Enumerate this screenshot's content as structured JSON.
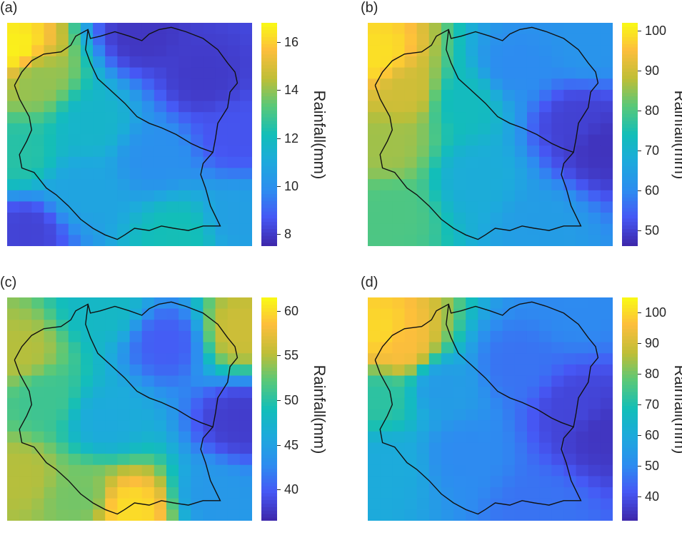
{
  "chart_data": [
    {
      "type": "heatmap",
      "panel_label": "(a)",
      "colorbar_label": "Rainfall(mm)",
      "colorbar_range": [
        7.5,
        16.8
      ],
      "colorbar_ticks": [
        8,
        10,
        12,
        14,
        16
      ],
      "colormap": "parula",
      "grid_size": [
        20,
        20
      ],
      "field_points": [
        {
          "x": 0.03,
          "y": 0.12,
          "value": 16.6
        },
        {
          "x": 0.12,
          "y": 0.25,
          "value": 14.0
        },
        {
          "x": 0.55,
          "y": 0.05,
          "value": 7.9
        },
        {
          "x": 0.8,
          "y": 0.25,
          "value": 8.0
        },
        {
          "x": 0.93,
          "y": 0.5,
          "value": 8.6
        },
        {
          "x": 0.35,
          "y": 0.45,
          "value": 11.6
        },
        {
          "x": 0.3,
          "y": 0.75,
          "value": 10.8
        },
        {
          "x": 0.6,
          "y": 0.6,
          "value": 10.0
        },
        {
          "x": 0.7,
          "y": 0.95,
          "value": 12.2
        },
        {
          "x": 0.08,
          "y": 0.93,
          "value": 8.2
        },
        {
          "x": 0.05,
          "y": 0.6,
          "value": 12.5
        },
        {
          "x": 0.95,
          "y": 0.88,
          "value": 10.6
        }
      ]
    },
    {
      "type": "heatmap",
      "panel_label": "(b)",
      "colorbar_label": "Rainfall(mm)",
      "colorbar_range": [
        46,
        102
      ],
      "colorbar_ticks": [
        50,
        60,
        70,
        80,
        90,
        100
      ],
      "colormap": "parula",
      "grid_size": [
        20,
        20
      ],
      "field_points": [
        {
          "x": 0.04,
          "y": 0.15,
          "value": 99
        },
        {
          "x": 0.15,
          "y": 0.3,
          "value": 90
        },
        {
          "x": 0.08,
          "y": 0.55,
          "value": 86
        },
        {
          "x": 0.1,
          "y": 0.85,
          "value": 80
        },
        {
          "x": 0.4,
          "y": 0.35,
          "value": 73
        },
        {
          "x": 0.45,
          "y": 0.7,
          "value": 68
        },
        {
          "x": 0.6,
          "y": 0.2,
          "value": 60
        },
        {
          "x": 0.85,
          "y": 0.45,
          "value": 50
        },
        {
          "x": 0.95,
          "y": 0.55,
          "value": 48
        },
        {
          "x": 0.7,
          "y": 0.9,
          "value": 64
        },
        {
          "x": 0.9,
          "y": 0.1,
          "value": 62
        }
      ]
    },
    {
      "type": "heatmap",
      "panel_label": "(c)",
      "colorbar_label": "Rainfall(mm)",
      "colorbar_range": [
        36.5,
        61.5
      ],
      "colorbar_ticks": [
        40,
        45,
        50,
        55,
        60
      ],
      "colormap": "parula",
      "grid_size": [
        20,
        20
      ],
      "field_points": [
        {
          "x": 0.05,
          "y": 0.25,
          "value": 55
        },
        {
          "x": 0.15,
          "y": 0.45,
          "value": 51
        },
        {
          "x": 0.05,
          "y": 0.8,
          "value": 55
        },
        {
          "x": 0.5,
          "y": 0.95,
          "value": 60
        },
        {
          "x": 0.3,
          "y": 0.9,
          "value": 53
        },
        {
          "x": 0.4,
          "y": 0.55,
          "value": 46
        },
        {
          "x": 0.65,
          "y": 0.2,
          "value": 40
        },
        {
          "x": 0.95,
          "y": 0.55,
          "value": 38
        },
        {
          "x": 0.95,
          "y": 0.15,
          "value": 56
        },
        {
          "x": 0.4,
          "y": 0.05,
          "value": 48
        },
        {
          "x": 0.85,
          "y": 0.9,
          "value": 44
        }
      ]
    },
    {
      "type": "heatmap",
      "panel_label": "(d)",
      "colorbar_label": "Rainfall(mm)",
      "colorbar_range": [
        32,
        105
      ],
      "colorbar_ticks": [
        40,
        50,
        60,
        70,
        80,
        90,
        100
      ],
      "colormap": "parula",
      "grid_size": [
        20,
        20
      ],
      "field_points": [
        {
          "x": 0.05,
          "y": 0.15,
          "value": 100
        },
        {
          "x": 0.14,
          "y": 0.22,
          "value": 96
        },
        {
          "x": 0.05,
          "y": 0.45,
          "value": 72
        },
        {
          "x": 0.08,
          "y": 0.75,
          "value": 60
        },
        {
          "x": 0.3,
          "y": 0.4,
          "value": 55
        },
        {
          "x": 0.4,
          "y": 0.7,
          "value": 50
        },
        {
          "x": 0.6,
          "y": 0.3,
          "value": 46
        },
        {
          "x": 0.85,
          "y": 0.5,
          "value": 38
        },
        {
          "x": 0.95,
          "y": 0.6,
          "value": 35
        },
        {
          "x": 0.7,
          "y": 0.95,
          "value": 46
        },
        {
          "x": 0.85,
          "y": 0.05,
          "value": 50
        }
      ]
    }
  ]
}
